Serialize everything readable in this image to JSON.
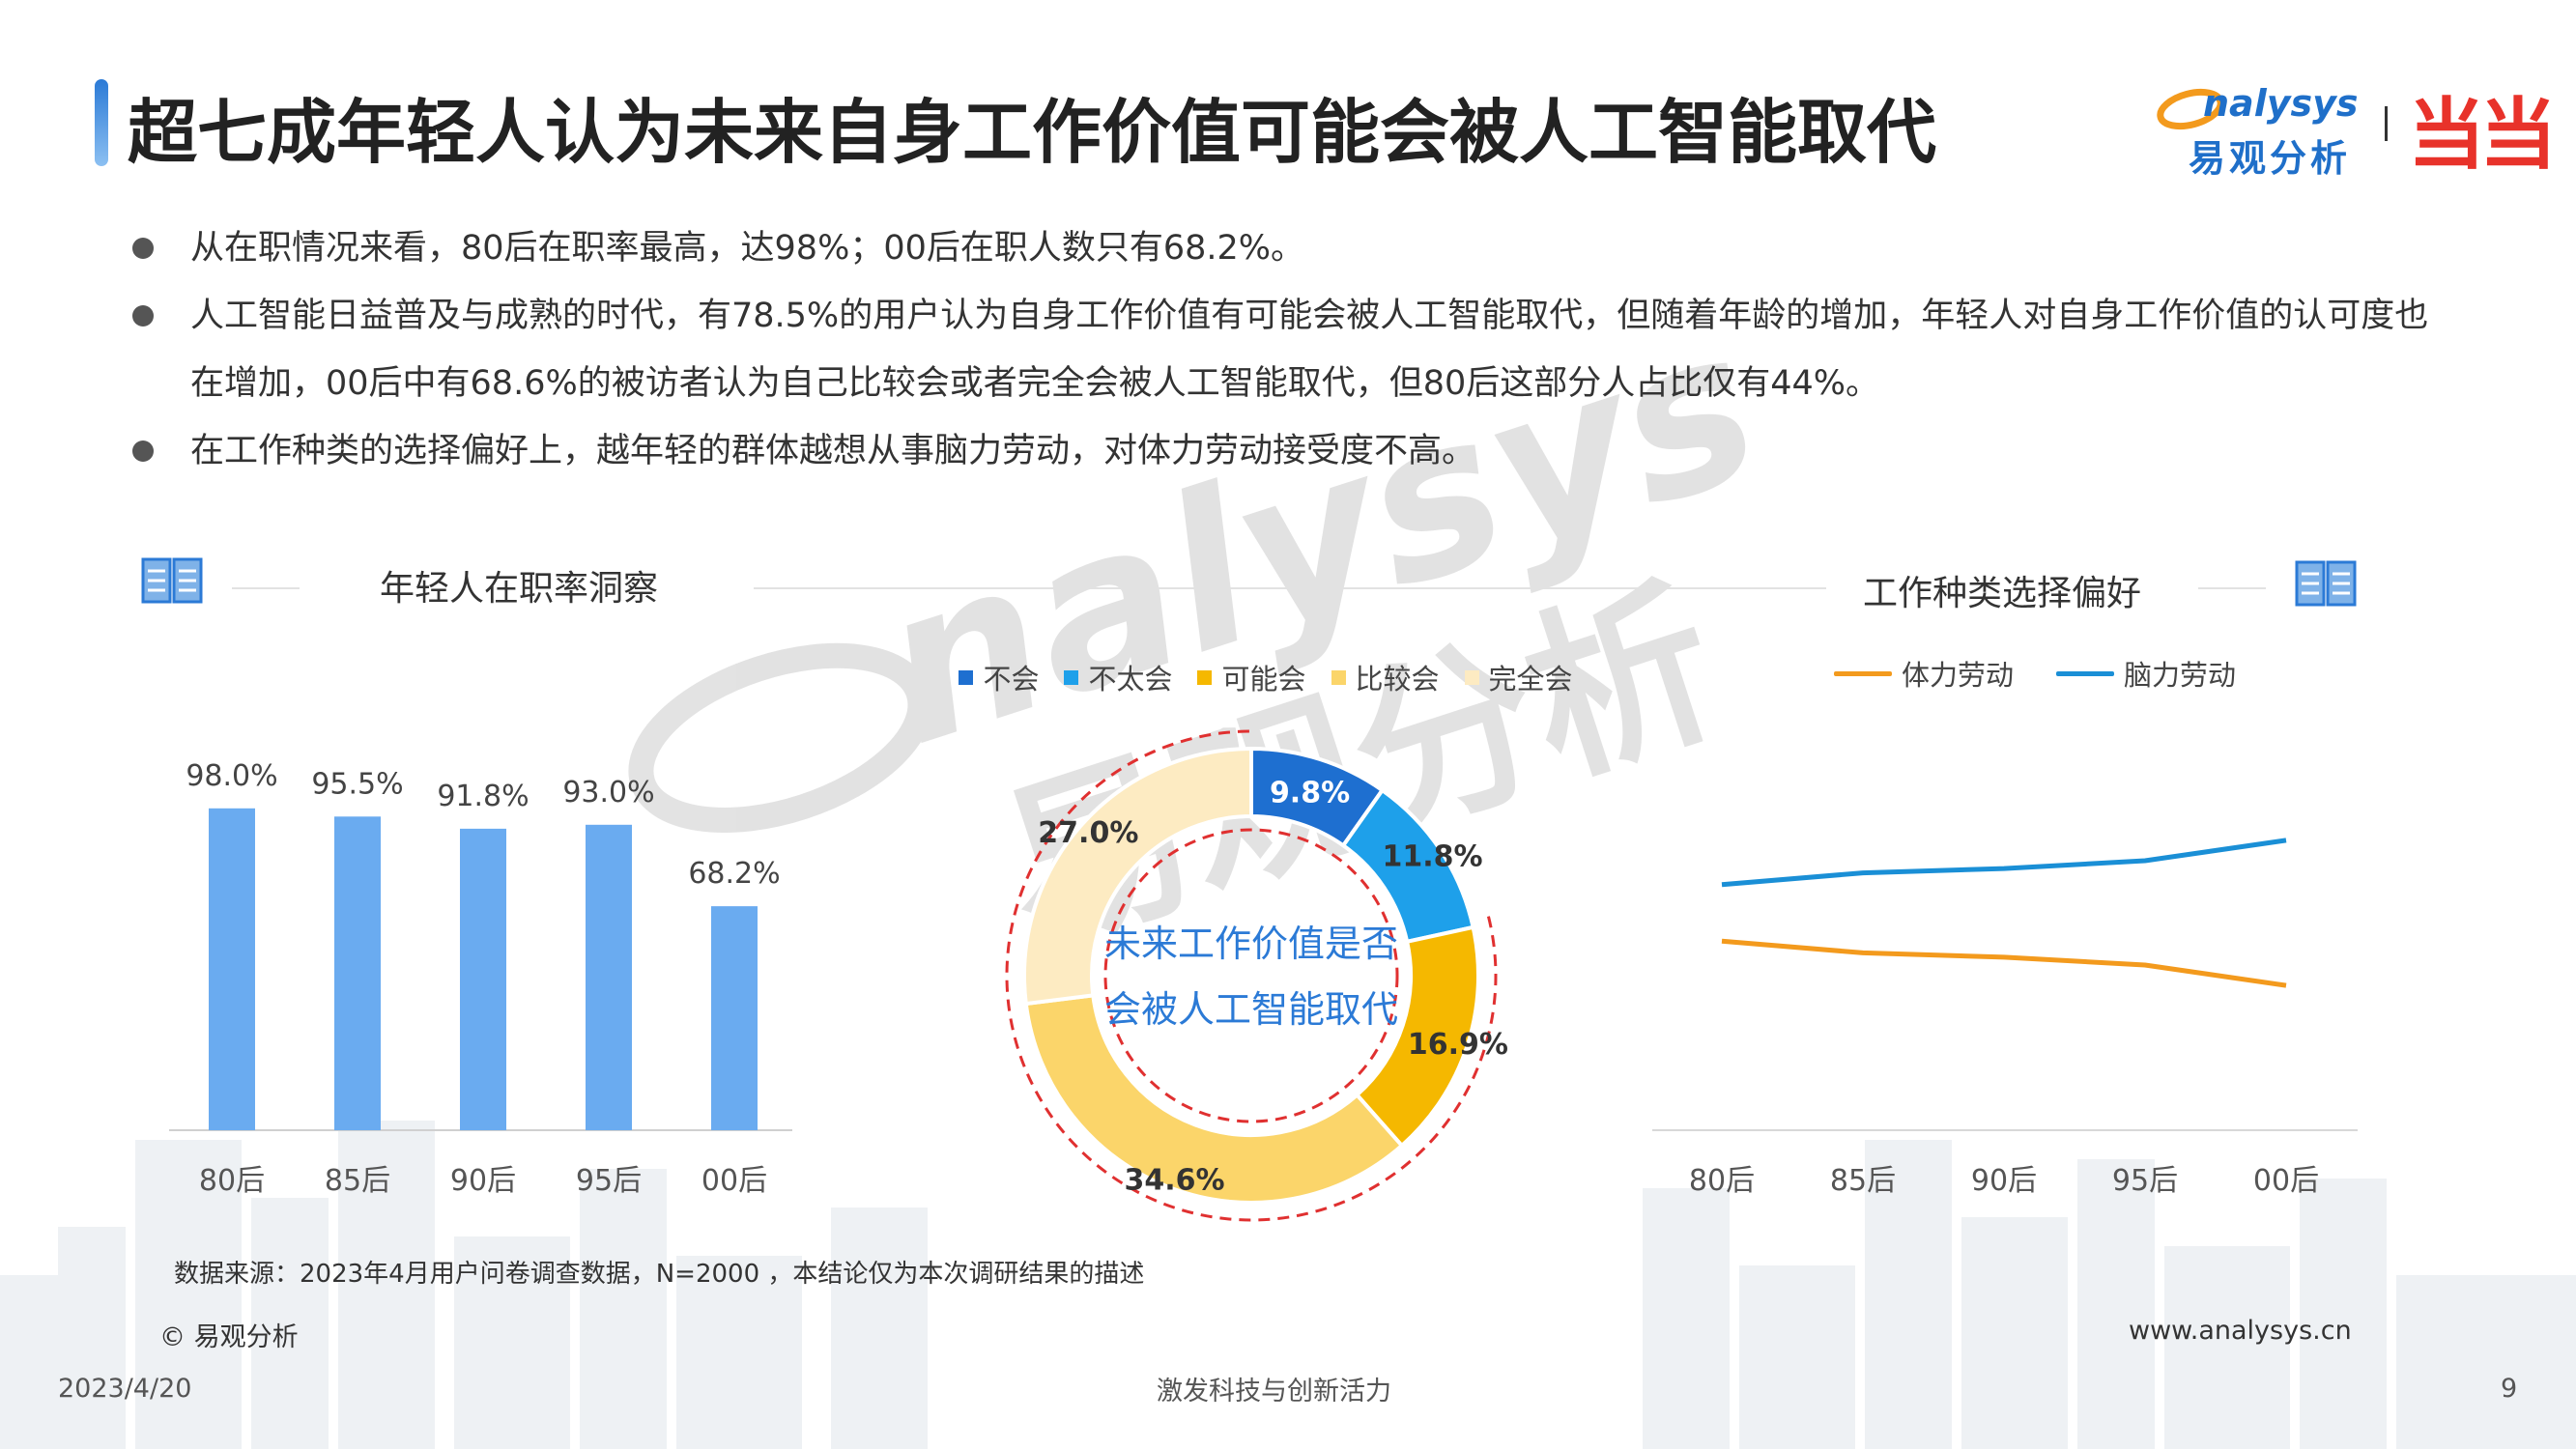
{
  "header": {
    "title": "超七成年轻人认为未来自身工作价值可能会被人工智能取代",
    "logo_text": "nalysys",
    "logo_sub": "易观分析",
    "partner_logo": "当当"
  },
  "bullets": [
    "从在职情况来看，80后在职率最高，达98%；00后在职人数只有68.2%。",
    "人工智能日益普及与成熟的时代，有78.5%的用户认为自身工作价值有可能会被人工智能取代，但随着年龄的增加，年轻人对自身工作价值的认可度也在增加，00后中有68.6%的被访者认为自己比较会或者完全会被人工智能取代，但80后这部分人占比仅有44%。",
    "在工作种类的选择偏好上，越年轻的群体越想从事脑力劳动，对体力劳动接受度不高。"
  ],
  "sections": {
    "left_title": "年轻人在职率洞察",
    "right_title": "工作种类选择偏好"
  },
  "colors": {
    "bar": "#6aabf0",
    "accent_blue": "#2b7ad6",
    "orange": "#f39a1d",
    "line_blue": "#1a8fd6",
    "dashed_red": "#e03030"
  },
  "chart_data": [
    {
      "type": "bar",
      "title": "年轻人在职率洞察",
      "categories": [
        "80后",
        "85后",
        "90后",
        "95后",
        "00后"
      ],
      "values": [
        98.0,
        95.5,
        91.8,
        93.0,
        68.2
      ],
      "labels": [
        "98.0%",
        "95.5%",
        "91.8%",
        "93.0%",
        "68.2%"
      ],
      "ylim": [
        0,
        100
      ],
      "grid": false
    },
    {
      "type": "pie",
      "center_text": [
        "未来工作价值是否",
        "会被人工智能取代"
      ],
      "categories": [
        "不会",
        "不太会",
        "可能会",
        "比较会",
        "完全会"
      ],
      "values": [
        9.8,
        11.8,
        16.9,
        34.6,
        27.0
      ],
      "labels": [
        "9.8%",
        "11.8%",
        "16.9%",
        "34.6%",
        "27.0%"
      ],
      "colors": [
        "#1e6fd0",
        "#1ea0ea",
        "#f5b800",
        "#fbd56a",
        "#fdebc2"
      ],
      "legend": "top"
    },
    {
      "type": "line",
      "title": "工作种类选择偏好",
      "categories": [
        "80后",
        "85后",
        "90后",
        "95后",
        "00后"
      ],
      "series": [
        {
          "name": "体力劳动",
          "values": [
            43.5,
            40.8,
            39.8,
            38.0,
            33.3
          ]
        },
        {
          "name": "脑力劳动",
          "values": [
            56.5,
            59.2,
            60.2,
            62.0,
            66.7
          ]
        }
      ],
      "ylim": [
        0,
        80
      ],
      "legend": "top"
    }
  ],
  "footer": {
    "source": "数据来源：2023年4月用户问卷调查数据，N=2000 ，本结论仅为本次调研结果的描述",
    "copyright": "© 易观分析",
    "website": "www.analysys.cn",
    "date": "2023/4/20",
    "slogan": "激发科技与创新活力",
    "page": "9"
  },
  "watermark": {
    "line1": "nalysys",
    "line2": "易观分析"
  }
}
